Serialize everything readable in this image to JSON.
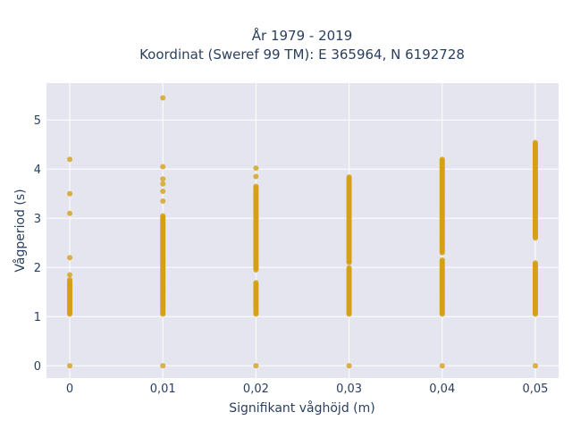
{
  "chart_data": {
    "type": "scatter",
    "title_line1": "År 1979 - 2019",
    "title_line2": "Koordinat (Sweref 99 TM): E 365964, N 6192728",
    "xlabel": "Signifikant våghöjd (m)",
    "ylabel": "Vågperiod (s)",
    "x_ticks": [
      {
        "value": 0,
        "label": "0"
      },
      {
        "value": 0.01,
        "label": "0,01"
      },
      {
        "value": 0.02,
        "label": "0,02"
      },
      {
        "value": 0.03,
        "label": "0,03"
      },
      {
        "value": 0.04,
        "label": "0,04"
      },
      {
        "value": 0.05,
        "label": "0,05"
      }
    ],
    "y_ticks": [
      {
        "value": 0,
        "label": "0"
      },
      {
        "value": 1,
        "label": "1"
      },
      {
        "value": 2,
        "label": "2"
      },
      {
        "value": 3,
        "label": "3"
      },
      {
        "value": 4,
        "label": "4"
      },
      {
        "value": 5,
        "label": "5"
      }
    ],
    "xlim": [
      -0.0025,
      0.0525
    ],
    "ylim": [
      -0.25,
      5.75
    ],
    "grid": true,
    "marker_color": "#D4A017",
    "plot_bg": "#E5E5F0",
    "columns": [
      {
        "x": 0,
        "ranges": [
          [
            1.05,
            1.75
          ]
        ],
        "points": [
          0,
          1.85,
          2.2,
          3.1,
          3.5,
          4.2
        ]
      },
      {
        "x": 0.01,
        "ranges": [
          [
            1.05,
            3.05
          ]
        ],
        "points": [
          0,
          3.35,
          3.55,
          3.7,
          3.8,
          4.05,
          5.45
        ]
      },
      {
        "x": 0.02,
        "ranges": [
          [
            1.05,
            1.7
          ],
          [
            1.95,
            3.65
          ]
        ],
        "points": [
          0,
          3.85,
          4.02
        ]
      },
      {
        "x": 0.03,
        "ranges": [
          [
            1.05,
            2.0
          ],
          [
            2.1,
            3.85
          ]
        ],
        "points": [
          0
        ]
      },
      {
        "x": 0.04,
        "ranges": [
          [
            1.05,
            2.15
          ],
          [
            2.3,
            4.2
          ]
        ],
        "points": [
          0
        ]
      },
      {
        "x": 0.05,
        "ranges": [
          [
            1.05,
            2.1
          ],
          [
            2.6,
            4.55
          ]
        ],
        "points": [
          0
        ]
      }
    ]
  }
}
